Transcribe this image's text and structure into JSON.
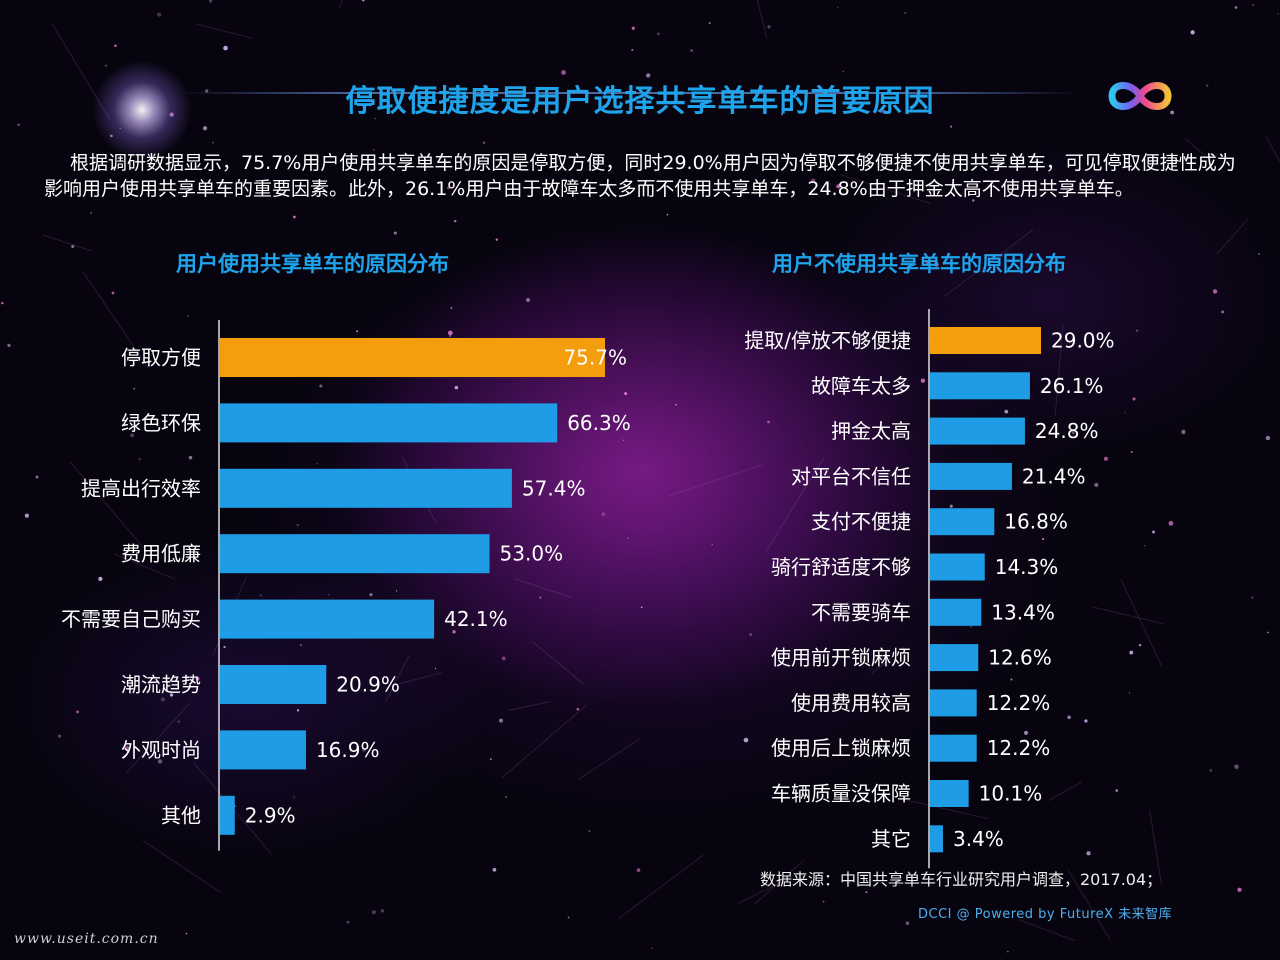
{
  "title": "停取便捷度是用户选择共享单车的首要原因",
  "intro": "根据调研数据显示，75.7%用户使用共享单车的原因是停取方便，同时29.0%用户因为停取不够便捷不使用共享单车，可见停取便捷性成为影响用户使用共享单车的重要因素。此外，26.1%用户由于故障车太多而不使用共享单车，24.8%由于押金太高不使用共享单车。",
  "colors": {
    "highlight": "#f49d0d",
    "bar": "#1e9de6",
    "title": "#1fa4ec"
  },
  "icons": [
    "lens-flare-icon",
    "infinity-logo-icon"
  ],
  "chart_data": [
    {
      "type": "bar",
      "orientation": "horizontal",
      "title": "用户使用共享单车的原因分布",
      "categories": [
        "停取方便",
        "绿色环保",
        "提高出行效率",
        "费用低廉",
        "不需要自己购买",
        "潮流趋势",
        "外观时尚",
        "其他"
      ],
      "values": [
        75.7,
        66.3,
        57.4,
        53.0,
        42.1,
        20.9,
        16.9,
        2.9
      ],
      "labels": [
        "75.7%",
        "66.3%",
        "57.4%",
        "53.0%",
        "42.1%",
        "20.9%",
        "16.9%",
        "2.9%"
      ],
      "highlight_index": 0,
      "xlim": [
        0,
        75.7
      ]
    },
    {
      "type": "bar",
      "orientation": "horizontal",
      "title": "用户不使用共享单车的原因分布",
      "categories": [
        "提取/停放不够便捷",
        "故障车太多",
        "押金太高",
        "对平台不信任",
        "支付不便捷",
        "骑行舒适度不够",
        "不需要骑车",
        "使用前开锁麻烦",
        "使用费用较高",
        "使用后上锁麻烦",
        "车辆质量没保障",
        "其它"
      ],
      "values": [
        29.0,
        26.1,
        24.8,
        21.4,
        16.8,
        14.3,
        13.4,
        12.6,
        12.2,
        12.2,
        10.1,
        3.4
      ],
      "labels": [
        "29.0%",
        "26.1%",
        "24.8%",
        "21.4%",
        "16.8%",
        "14.3%",
        "13.4%",
        "12.6%",
        "12.2%",
        "12.2%",
        "10.1%",
        "3.4%"
      ],
      "highlight_index": 0,
      "xlim": [
        0,
        29.0
      ]
    }
  ],
  "source": "数据来源：中国共享单车行业研究用户调查，2017.04；",
  "powered": "DCCI @ Powered by FutureX 未来智库",
  "watermark": "www.useit.com.cn"
}
